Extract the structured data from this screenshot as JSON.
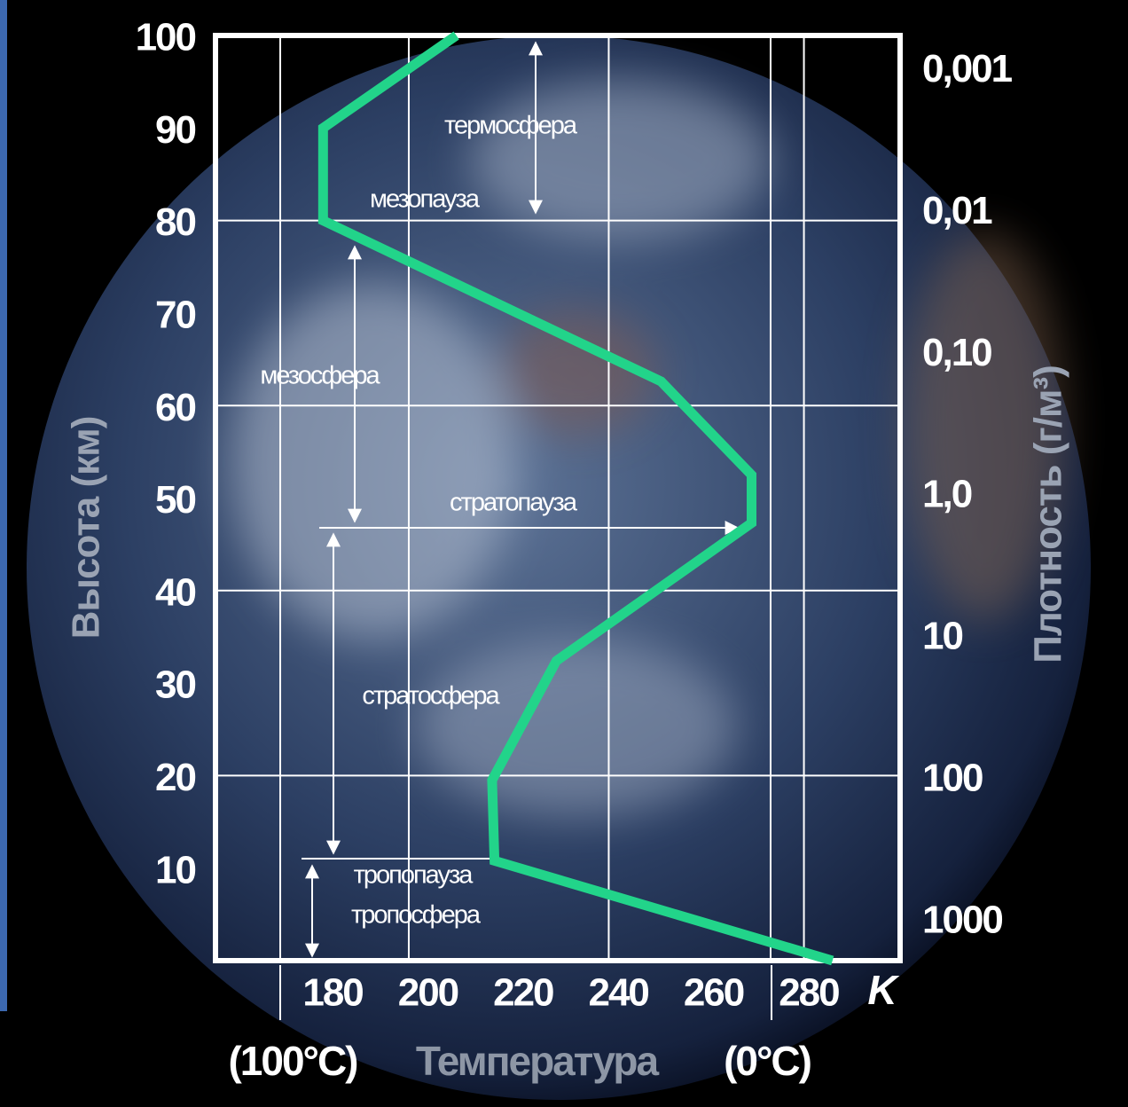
{
  "chart_data": {
    "type": "line",
    "x": [
      206,
      178,
      178,
      249,
      268,
      268,
      227,
      213.5,
      214,
      285
    ],
    "values": [
      100,
      90,
      80,
      62.6,
      52.5,
      47.3,
      32.4,
      19.5,
      10.8,
      0
    ],
    "color": "#22d48a",
    "xlim": [
      155.4,
      299.2
    ],
    "xticks": [
      180,
      200,
      220,
      240,
      260,
      280
    ],
    "ylim": [
      0,
      100
    ],
    "yticks": [
      10,
      20,
      30,
      40,
      50,
      60,
      70,
      80,
      90,
      100
    ],
    "ygrid": [
      20,
      40,
      60,
      80
    ],
    "xgrid": [
      169,
      196,
      238,
      272,
      279
    ],
    "y2lim": [
      1860,
      0.00056
    ],
    "y2log": true,
    "y2ticks": [
      {
        "value": 0.001,
        "label": "0,001"
      },
      {
        "value": 0.01,
        "label": "0,01"
      },
      {
        "value": 0.1,
        "label": "0,10"
      },
      {
        "value": 1,
        "label": "1,0"
      },
      10,
      100,
      1000
    ],
    "ylabel": "Высота (км)",
    "y2label": "Плотность (г/м³)",
    "xlabel": "Температура",
    "x_unit": "K",
    "x_notes": [
      "(100°C)",
      "(0°C)"
    ],
    "annotations": [
      "термосфера",
      "мезопауза",
      "мезосфера",
      "стратопауза",
      "стратосфера",
      "тропопауза",
      "тропосфера"
    ]
  }
}
